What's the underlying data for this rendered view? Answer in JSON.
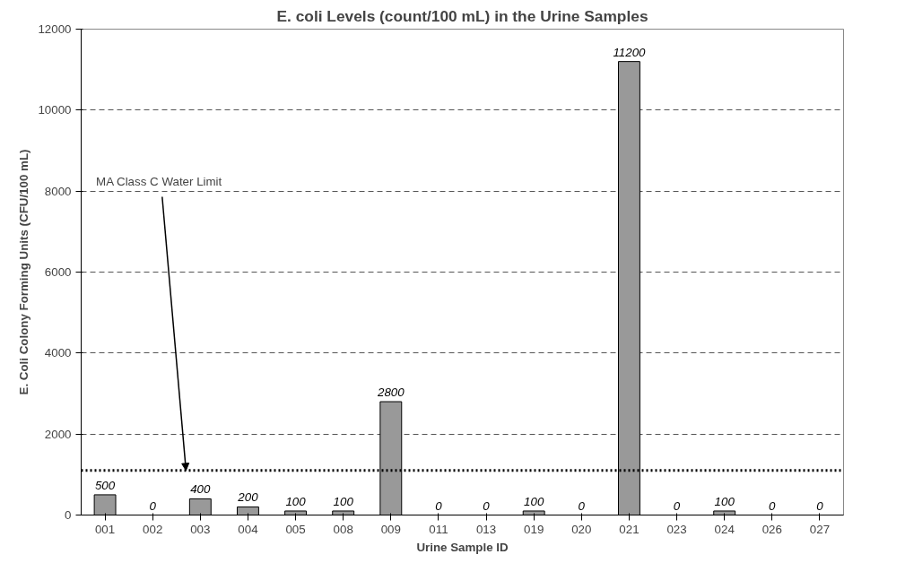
{
  "chart_data": {
    "type": "bar",
    "title": "E. coli Levels (count/100 mL) in the Urine Samples",
    "xlabel": "Urine Sample ID",
    "ylabel": "E. Coli Colony Forming Units (CFU/100 mL)",
    "categories": [
      "001",
      "002",
      "003",
      "004",
      "005",
      "008",
      "009",
      "011",
      "013",
      "019",
      "020",
      "021",
      "023",
      "024",
      "026",
      "027"
    ],
    "values": [
      500,
      0,
      400,
      200,
      100,
      100,
      2800,
      0,
      0,
      100,
      0,
      11200,
      0,
      100,
      0,
      0
    ],
    "color": "#999999",
    "data_labels": true,
    "ylim": [
      0,
      12000
    ],
    "yticks": [
      0,
      2000,
      4000,
      6000,
      8000,
      10000,
      12000
    ],
    "grid": "y",
    "ref_lines": [
      {
        "axis": "y",
        "value": 1100,
        "label": "MA Class C Water Limit",
        "color": "#000000",
        "line_style": "dotted"
      }
    ]
  }
}
